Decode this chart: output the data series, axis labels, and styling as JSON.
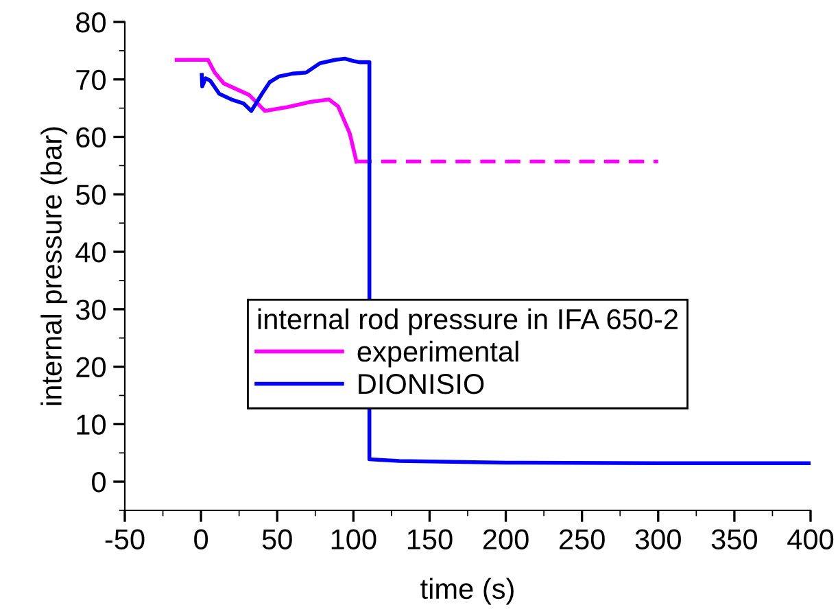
{
  "chart_data": {
    "type": "line",
    "xlabel": "time (s)",
    "ylabel": "internal pressure (bar)",
    "legend_title": "internal rod pressure in IFA 650-2",
    "legend": "center",
    "grid": false,
    "marker": "none",
    "xlim": [
      -50,
      400
    ],
    "xticks": [
      -50,
      0,
      50,
      100,
      150,
      200,
      250,
      300,
      350,
      400
    ],
    "ylim": [
      -5,
      80
    ],
    "yticks": [
      0,
      10,
      20,
      30,
      40,
      50,
      60,
      70,
      80
    ],
    "series": [
      {
        "name": "experimental",
        "color": "#ff00ff",
        "line_style": "solid",
        "x": [
          -16,
          4.6,
          9,
          15,
          31.6,
          42,
          57,
          72,
          84,
          90,
          97.6,
          102
        ],
        "values": [
          73.4,
          73.4,
          71.2,
          69.3,
          67.3,
          64.5,
          65.2,
          66.1,
          66.5,
          65.3,
          60.6,
          55.7
        ]
      },
      {
        "color": "#ff00ff",
        "line_style": "dashed",
        "x": [
          102,
          300
        ],
        "values": [
          55.7,
          55.7
        ]
      },
      {
        "name": "DIONISIO",
        "color": "#0000ff",
        "line_style": "solid",
        "x": [
          0.5,
          0.8,
          3,
          6,
          12,
          20,
          28,
          33,
          40,
          45,
          51,
          60,
          69,
          78,
          88,
          94.6,
          100,
          104,
          110.5,
          110.5,
          130,
          200,
          300,
          400
        ],
        "values": [
          70.8,
          68.8,
          70.2,
          69.8,
          67.5,
          66.5,
          65.8,
          64.5,
          67.5,
          69.5,
          70.5,
          71,
          71.2,
          72.8,
          73.4,
          73.6,
          73.2,
          73,
          73,
          3.9,
          3.6,
          3.3,
          3.2,
          3.2
        ]
      }
    ]
  }
}
